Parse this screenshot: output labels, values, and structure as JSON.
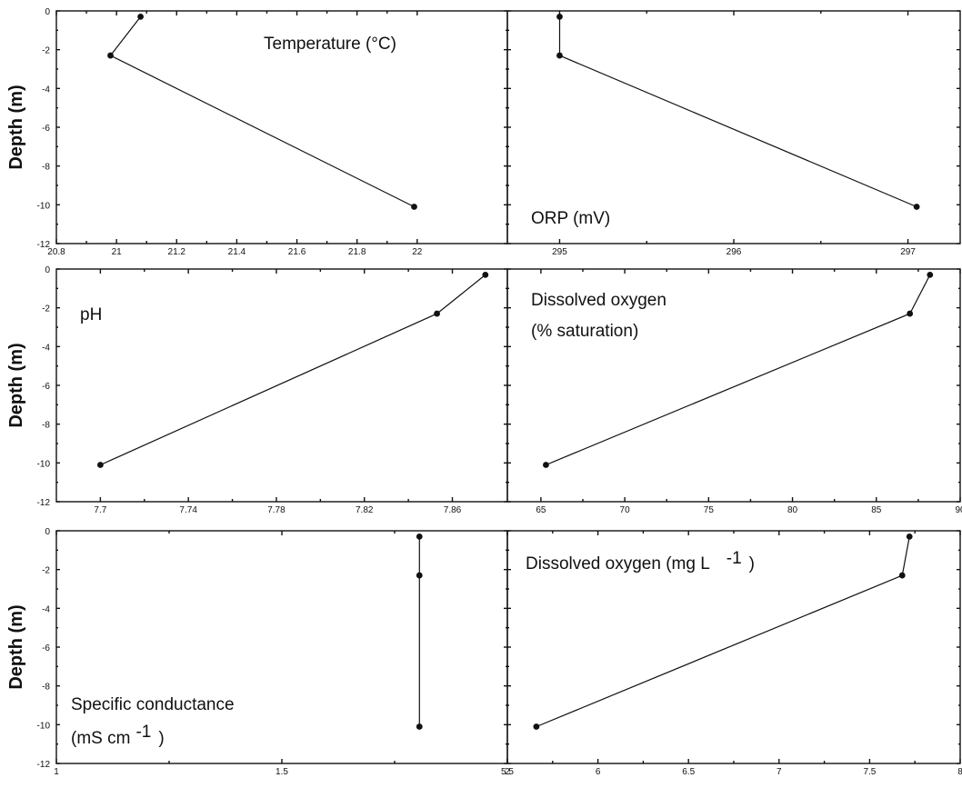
{
  "chart_data": [
    {
      "type": "line",
      "title": "Temperature (°C)",
      "ylabel": "Depth (m)",
      "xlim": [
        20.8,
        22.3
      ],
      "ylim": [
        -12,
        0
      ],
      "xticks": [
        20.8,
        21,
        21.2,
        21.4,
        21.6,
        21.8,
        22
      ],
      "xtick_labels": [
        "20.8",
        "21",
        "21.2",
        "21.4",
        "21.6",
        "21.8",
        "22"
      ],
      "yticks": [
        0,
        -2,
        -4,
        -6,
        -8,
        -10,
        -12
      ],
      "ytick_labels": [
        "0",
        "-2",
        "-4",
        "-6",
        "-8",
        "-10",
        "-12"
      ],
      "points": [
        {
          "x": 21.08,
          "y": -0.3
        },
        {
          "x": 20.98,
          "y": -2.3
        },
        {
          "x": 21.99,
          "y": -10.1
        }
      ]
    },
    {
      "type": "line",
      "title": "ORP (mV)",
      "ylabel": "",
      "xlim": [
        294.7,
        297.3
      ],
      "ylim": [
        -12,
        0
      ],
      "xticks": [
        295,
        296,
        297
      ],
      "xtick_labels": [
        "295",
        "296",
        "297"
      ],
      "yticks": [
        0,
        -2,
        -4,
        -6,
        -8,
        -10,
        -12
      ],
      "ytick_labels": [],
      "points": [
        {
          "x": 295.0,
          "y": -0.3
        },
        {
          "x": 295.0,
          "y": -2.3
        },
        {
          "x": 297.05,
          "y": -10.1
        }
      ]
    },
    {
      "type": "line",
      "title": "pH",
      "ylabel": "Depth (m)",
      "xlim": [
        7.68,
        7.885
      ],
      "ylim": [
        -12,
        0
      ],
      "xticks": [
        7.7,
        7.74,
        7.78,
        7.82,
        7.86
      ],
      "xtick_labels": [
        "7.7",
        "7.74",
        "7.78",
        "7.82",
        "7.86"
      ],
      "yticks": [
        0,
        -2,
        -4,
        -6,
        -8,
        -10,
        -12
      ],
      "ytick_labels": [
        "0",
        "-2",
        "-4",
        "-6",
        "-8",
        "-10",
        "-12"
      ],
      "points": [
        {
          "x": 7.875,
          "y": -0.3
        },
        {
          "x": 7.853,
          "y": -2.3
        },
        {
          "x": 7.7,
          "y": -10.1
        }
      ]
    },
    {
      "type": "line",
      "title": "Dissolved oxygen",
      "subtitle": "(% saturation)",
      "ylabel": "",
      "xlim": [
        63,
        90
      ],
      "ylim": [
        -12,
        0
      ],
      "xticks": [
        65,
        70,
        75,
        80,
        85,
        90
      ],
      "xtick_labels": [
        "65",
        "70",
        "75",
        "80",
        "85",
        "90"
      ],
      "yticks": [
        0,
        -2,
        -4,
        -6,
        -8,
        -10,
        -12
      ],
      "ytick_labels": [],
      "points": [
        {
          "x": 88.2,
          "y": -0.3
        },
        {
          "x": 87.0,
          "y": -2.3
        },
        {
          "x": 65.3,
          "y": -10.1
        }
      ]
    },
    {
      "type": "line",
      "title": "Specific conductance",
      "subtitle": "(mS cm",
      "title_sup": "-1",
      "title_close": ")",
      "ylabel": "Depth (m)",
      "xlim": [
        1,
        2
      ],
      "ylim": [
        -12,
        0
      ],
      "xticks": [
        1,
        1.5,
        2
      ],
      "xtick_labels": [
        "1",
        "1.5",
        "2"
      ],
      "yticks": [
        0,
        -2,
        -4,
        -6,
        -8,
        -10,
        -12
      ],
      "ytick_labels": [
        "0",
        "-2",
        "-4",
        "-6",
        "-8",
        "-10",
        "-12"
      ],
      "points": [
        {
          "x": 1.805,
          "y": -0.3
        },
        {
          "x": 1.805,
          "y": -2.3
        },
        {
          "x": 1.805,
          "y": -10.1
        }
      ]
    },
    {
      "type": "line",
      "title": "Dissolved oxygen (mg L",
      "title_sup": "-1",
      "title_close": ")",
      "ylabel": "",
      "xlim": [
        5.5,
        8
      ],
      "ylim": [
        -12,
        0
      ],
      "xticks": [
        5.5,
        6,
        6.5,
        7,
        7.5,
        8
      ],
      "xtick_labels": [
        "5.5",
        "6",
        "6.5",
        "7",
        "7.5",
        "8"
      ],
      "yticks": [
        0,
        -2,
        -4,
        -6,
        -8,
        -10,
        -12
      ],
      "ytick_labels": [],
      "points": [
        {
          "x": 7.72,
          "y": -0.3
        },
        {
          "x": 7.68,
          "y": -2.3
        },
        {
          "x": 5.66,
          "y": -10.1
        }
      ]
    }
  ]
}
